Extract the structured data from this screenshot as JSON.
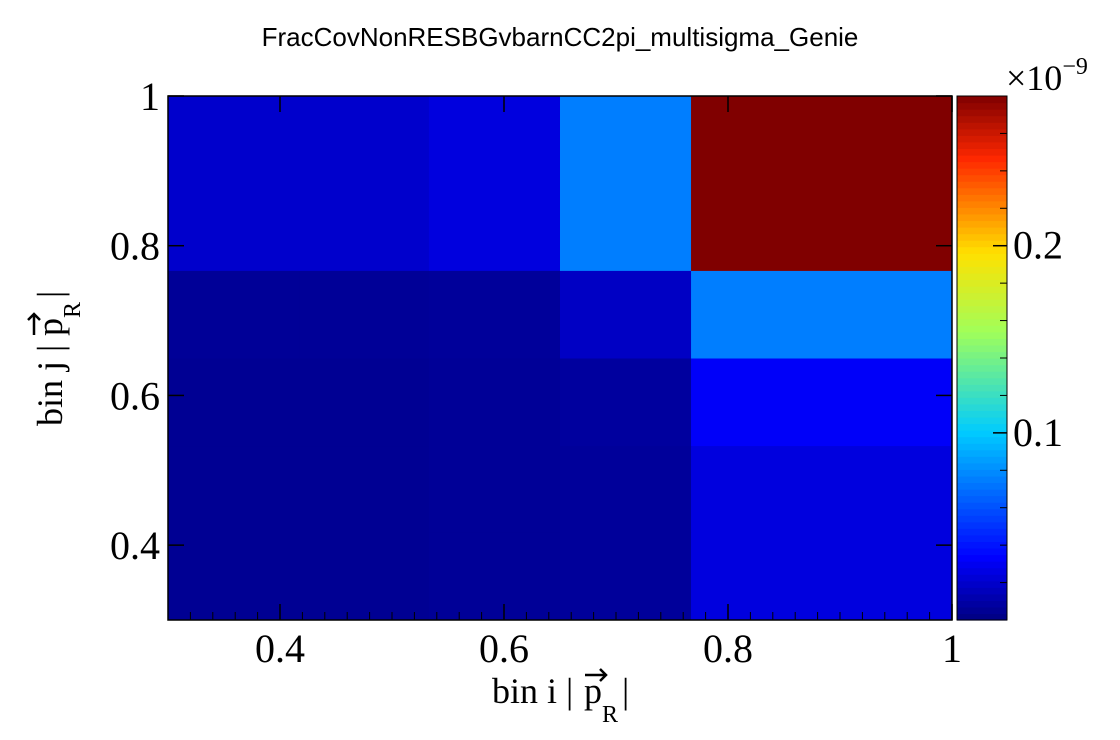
{
  "chart_data": {
    "type": "heatmap",
    "title": "FracCovNonRESBGvbarnCC2pi_multisigma_Genie",
    "xlabel": {
      "main": "bin i |",
      "var": "p",
      "sub": "R",
      "close": "|"
    },
    "ylabel": {
      "main": "bin j |",
      "var": "p",
      "sub": "R",
      "close": "|"
    },
    "xlim": [
      0.3,
      1.0
    ],
    "ylim": [
      0.3,
      1.0
    ],
    "x_ticks": [
      0.4,
      0.6,
      0.8,
      1.0
    ],
    "x_tick_labels": [
      "0.4",
      "0.6",
      "0.8",
      "1"
    ],
    "y_ticks": [
      0.4,
      0.6,
      0.8,
      1.0
    ],
    "y_tick_labels": [
      "0.4",
      "0.6",
      "0.8",
      "1"
    ],
    "x_bin_edges": [
      0.3,
      0.417,
      0.533,
      0.65,
      0.767,
      1.0
    ],
    "y_bin_edges": [
      0.3,
      0.417,
      0.533,
      0.65,
      0.767,
      1.0
    ],
    "z_unit_exponent": "−9",
    "z_unit_prefix": "×10",
    "zlim": [
      0.0,
      0.28
    ],
    "colorbar_ticks": [
      0.1,
      0.2
    ],
    "colorbar_tick_labels": [
      "0.1",
      "0.2"
    ],
    "colormap": "jet",
    "cells": [
      [
        0.005,
        0.005,
        0.006,
        0.007,
        0.025
      ],
      [
        0.005,
        0.005,
        0.006,
        0.007,
        0.025
      ],
      [
        0.005,
        0.005,
        0.006,
        0.008,
        0.032
      ],
      [
        0.006,
        0.006,
        0.007,
        0.018,
        0.075
      ],
      [
        0.02,
        0.02,
        0.025,
        0.075,
        0.28
      ]
    ]
  }
}
